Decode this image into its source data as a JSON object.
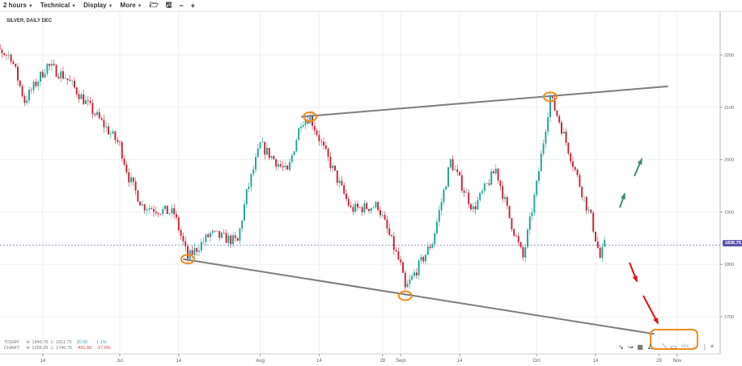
{
  "toolbar": {
    "items": [
      {
        "label": "2 hours"
      },
      {
        "label": "Technical"
      },
      {
        "label": "Display"
      },
      {
        "label": "More"
      }
    ],
    "icons": [
      "folder-open-icon",
      "save-icon",
      "zoom-out-icon",
      "zoom-in-icon"
    ],
    "glyphs": [
      "🗁",
      "🖫",
      "−",
      "+"
    ]
  },
  "chart_title": "SILVER, DAILY DEC",
  "stats": {
    "today": {
      "label": "TODAY:",
      "high": "H: 1840.75",
      "low": "L: 1811.75",
      "change": "20.50",
      "pct": "1.1%"
    },
    "chart": {
      "label": "CHART:",
      "high": "H: 2256.25",
      "low": "L: 1740.75",
      "change": "-401.50",
      "pct": "-17.9%"
    }
  },
  "current_price": "1836.75",
  "colors": {
    "up": "#26a69a",
    "down": "#c62a3a",
    "price_tag": "#5b54a8",
    "annotation": "#f28c1a",
    "trendline": "#7d7d7d",
    "arrow_up": "#3f8f6e",
    "arrow_down": "#e01010"
  },
  "drawing_tools": {
    "glyphs": [
      "↘",
      "↝",
      "▦",
      "∠",
      "⟍",
      "▭",
      "Abc",
      "/",
      "|",
      "✕"
    ]
  },
  "chart_data": {
    "type": "candlestick",
    "y_ticks": [
      1700,
      1800,
      1900,
      2000,
      2100,
      2200
    ],
    "ylim": [
      1660,
      2290
    ],
    "x_ticks": [
      {
        "label": "14",
        "date": "06-14"
      },
      {
        "label": "Jul",
        "date": "07-01"
      },
      {
        "label": "14",
        "date": "07-14"
      },
      {
        "label": "Aug",
        "date": "08-01"
      },
      {
        "label": "14",
        "date": "08-14"
      },
      {
        "label": "28",
        "date": "08-28"
      },
      {
        "label": "Sept",
        "date": "09-01"
      },
      {
        "label": "14",
        "date": "09-14"
      },
      {
        "label": "Oct",
        "date": "10-01"
      },
      {
        "label": "14",
        "date": "10-14"
      },
      {
        "label": "28",
        "date": "10-28"
      },
      {
        "label": "Nov",
        "date": "11-01"
      }
    ],
    "price_path": [
      [
        "05-31",
        2228
      ],
      [
        "06-07",
        2197
      ],
      [
        "06-10",
        2112
      ],
      [
        "06-15",
        2180
      ],
      [
        "06-19",
        2158
      ],
      [
        "07-01",
        2028
      ],
      [
        "07-03",
        1966
      ],
      [
        "07-06",
        1912
      ],
      [
        "07-13",
        1897
      ],
      [
        "07-16",
        1812
      ],
      [
        "07-21",
        1858
      ],
      [
        "07-27",
        1843
      ],
      [
        "07-29",
        1935
      ],
      [
        "08-01",
        2028
      ],
      [
        "08-07",
        1974
      ],
      [
        "08-10",
        2074
      ],
      [
        "08-12",
        2082
      ],
      [
        "08-15",
        2020
      ],
      [
        "08-21",
        1905
      ],
      [
        "08-27",
        1912
      ],
      [
        "09-01",
        1797
      ],
      [
        "09-02",
        1751
      ],
      [
        "09-08",
        1843
      ],
      [
        "09-12",
        1997
      ],
      [
        "09-17",
        1905
      ],
      [
        "09-22",
        1982
      ],
      [
        "09-25",
        1889
      ],
      [
        "09-28",
        1812
      ],
      [
        "10-01",
        1951
      ],
      [
        "10-04",
        2120
      ],
      [
        "10-06",
        2074
      ],
      [
        "10-08",
        2020
      ],
      [
        "10-12",
        1912
      ],
      [
        "10-13",
        1889
      ],
      [
        "10-15",
        1812
      ],
      [
        "10-16",
        1837
      ]
    ],
    "trendlines": [
      {
        "from": [
          "08-10",
          2082
        ],
        "to": [
          "10-30",
          2140
        ]
      },
      {
        "from": [
          "07-15",
          1810
        ],
        "to": [
          "10-27",
          1667
        ]
      }
    ],
    "highlighted_points": [
      [
        "07-16",
        1810
      ],
      [
        "08-12",
        2082
      ],
      [
        "09-02",
        1740
      ],
      [
        "10-04",
        2120
      ]
    ]
  }
}
